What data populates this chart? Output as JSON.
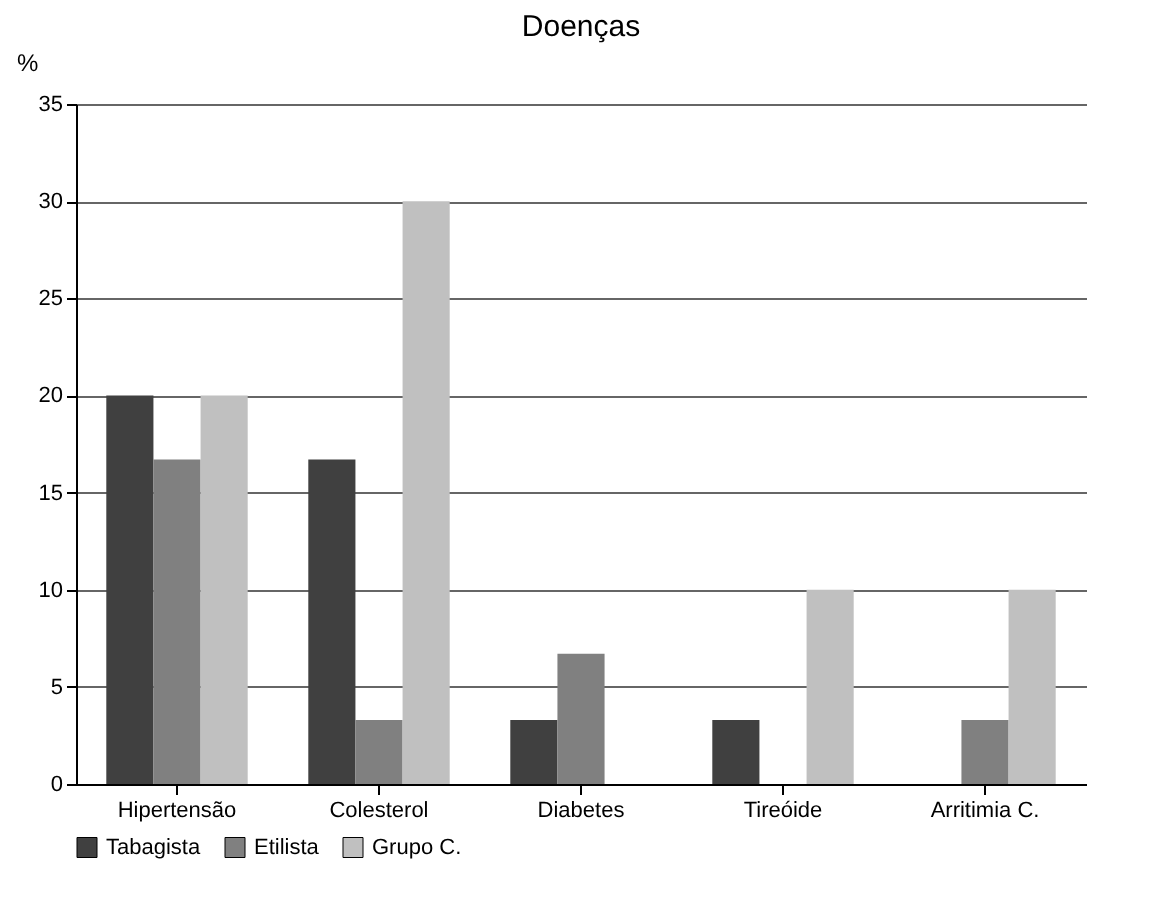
{
  "chart_data": {
    "type": "bar",
    "title": "Doenças",
    "ylabel": "%",
    "categories": [
      "Hipertensão",
      "Colesterol",
      "Diabetes",
      "Tireóide",
      "Arritimia C."
    ],
    "series": [
      {
        "name": "Tabagista",
        "color": "#404040",
        "values": [
          20,
          16.7,
          3.3,
          3.3,
          null
        ]
      },
      {
        "name": "Etilista",
        "color": "#808080",
        "values": [
          16.7,
          3.3,
          6.7,
          null,
          3.3
        ]
      },
      {
        "name": "Grupo C.",
        "color": "#c0c0c0",
        "values": [
          20,
          30,
          null,
          10,
          10
        ]
      }
    ],
    "ylim": [
      0,
      35
    ],
    "yticks": [
      0,
      5,
      10,
      15,
      20,
      25,
      30,
      35
    ],
    "grid": "y",
    "legend": "bottom"
  }
}
